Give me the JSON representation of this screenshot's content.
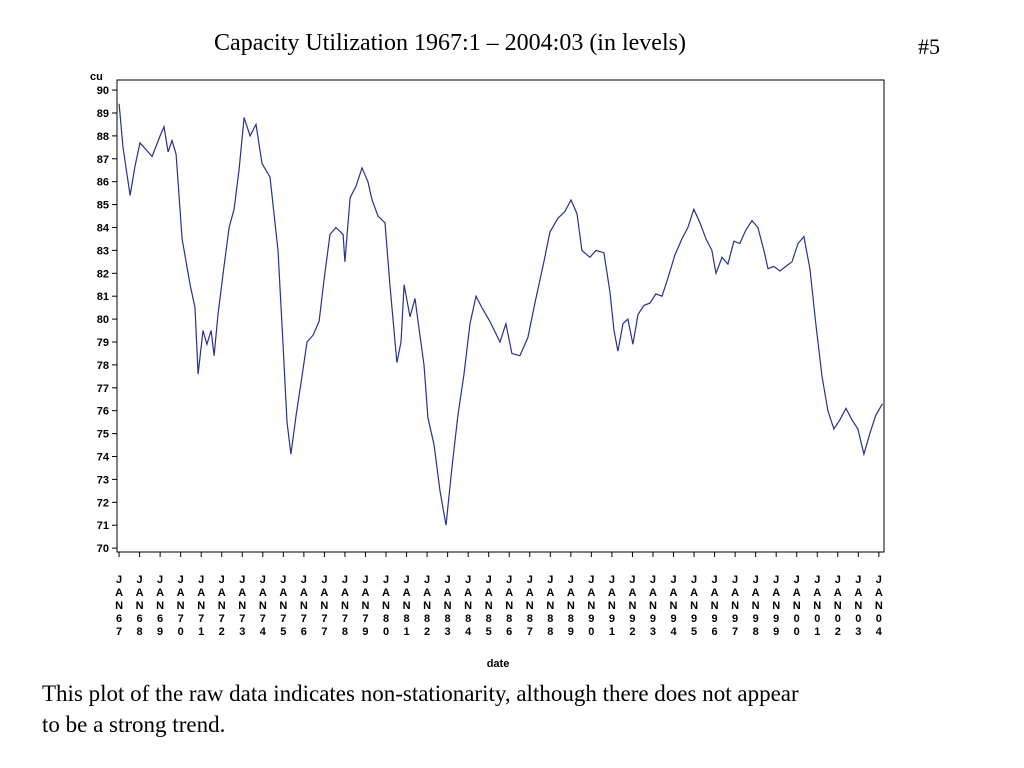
{
  "slide_number": "#5",
  "caption": "This plot of the raw data indicates non-stationarity, although there does not appear to be a strong trend.",
  "chart_data": {
    "type": "line",
    "title": "Capacity Utilization 1967:1 – 2004:03 (in levels)",
    "y_label": "cu",
    "x_label": "date",
    "x": [
      1967.0,
      1967.19,
      1967.54,
      1967.78,
      1968.02,
      1968.41,
      1968.61,
      1969.0,
      1969.19,
      1969.39,
      1969.58,
      1969.78,
      1970.07,
      1970.46,
      1970.7,
      1970.85,
      1971.09,
      1971.28,
      1971.48,
      1971.63,
      1971.82,
      1972.11,
      1972.36,
      1972.6,
      1972.84,
      1973.09,
      1973.38,
      1973.67,
      1973.96,
      1974.35,
      1974.74,
      1974.98,
      1975.18,
      1975.37,
      1975.62,
      1975.91,
      1976.15,
      1976.45,
      1976.74,
      1976.98,
      1977.27,
      1977.56,
      1977.91,
      1978.0,
      1978.25,
      1978.54,
      1978.83,
      1979.12,
      1979.32,
      1979.61,
      1979.95,
      1980.19,
      1980.53,
      1980.73,
      1980.88,
      1981.17,
      1981.41,
      1981.65,
      1981.85,
      1982.04,
      1982.34,
      1982.63,
      1982.92,
      1983.21,
      1983.5,
      1983.8,
      1984.09,
      1984.38,
      1984.67,
      1985.06,
      1985.55,
      1985.84,
      1986.13,
      1986.52,
      1986.91,
      1987.25,
      1987.69,
      1987.98,
      1988.37,
      1988.71,
      1989.01,
      1989.3,
      1989.54,
      1989.93,
      1990.22,
      1990.61,
      1990.9,
      1991.1,
      1991.29,
      1991.54,
      1991.78,
      1992.02,
      1992.27,
      1992.56,
      1992.85,
      1993.14,
      1993.44,
      1993.73,
      1994.07,
      1994.41,
      1994.7,
      1994.99,
      1995.29,
      1995.58,
      1995.87,
      1996.07,
      1996.36,
      1996.65,
      1996.94,
      1997.23,
      1997.53,
      1997.82,
      1998.11,
      1998.4,
      1998.6,
      1998.89,
      1999.18,
      1999.47,
      1999.77,
      2000.06,
      2000.35,
      2000.64,
      2000.93,
      2001.23,
      2001.52,
      2001.81,
      2002.1,
      2002.4,
      2002.69,
      2002.98,
      2003.27,
      2003.56,
      2003.85,
      2004.17
    ],
    "series": [
      {
        "color": "#27318f",
        "values": [
          89.4,
          87.5,
          85.4,
          86.7,
          87.7,
          87.3,
          87.1,
          88.0,
          88.4,
          87.3,
          87.8,
          87.2,
          83.5,
          81.5,
          80.5,
          77.6,
          79.5,
          78.9,
          79.5,
          78.4,
          80.2,
          82.3,
          84.0,
          84.8,
          86.5,
          88.8,
          88.0,
          88.5,
          86.8,
          86.2,
          83.0,
          79.0,
          75.5,
          74.1,
          75.8,
          77.5,
          79.0,
          79.3,
          79.9,
          81.7,
          83.7,
          84.0,
          83.7,
          82.5,
          85.3,
          85.8,
          86.6,
          86.0,
          85.2,
          84.5,
          84.2,
          81.5,
          78.1,
          79.0,
          81.5,
          80.1,
          80.9,
          79.3,
          78.0,
          75.7,
          74.5,
          72.5,
          71.0,
          73.5,
          75.8,
          77.6,
          79.8,
          81.0,
          80.5,
          79.9,
          79.0,
          79.8,
          78.5,
          78.4,
          79.2,
          80.7,
          82.5,
          83.8,
          84.4,
          84.7,
          85.2,
          84.6,
          83.0,
          82.7,
          83.0,
          82.9,
          81.2,
          79.5,
          78.6,
          79.8,
          80.0,
          78.9,
          80.2,
          80.6,
          80.7,
          81.1,
          81.0,
          81.8,
          82.8,
          83.5,
          84.0,
          84.8,
          84.2,
          83.5,
          83.0,
          82.0,
          82.7,
          82.4,
          83.4,
          83.3,
          83.9,
          84.3,
          84.0,
          83.0,
          82.2,
          82.3,
          82.1,
          82.3,
          82.5,
          83.3,
          83.6,
          82.2,
          79.8,
          77.5,
          76.0,
          75.2,
          75.6,
          76.1,
          75.6,
          75.2,
          74.1,
          75.0,
          75.8,
          76.3
        ]
      }
    ],
    "xlim": [
      1966.9,
      2004.25
    ],
    "ylim": [
      69.83,
      90.44
    ],
    "yticks": [
      70,
      71,
      72,
      73,
      74,
      75,
      76,
      77,
      78,
      79,
      80,
      81,
      82,
      83,
      84,
      85,
      86,
      87,
      88,
      89,
      90
    ],
    "xticks": [
      {
        "value": 1967,
        "label": "JAN67"
      },
      {
        "value": 1968,
        "label": "JAN68"
      },
      {
        "value": 1969,
        "label": "JAN69"
      },
      {
        "value": 1970,
        "label": "JAN70"
      },
      {
        "value": 1971,
        "label": "JAN71"
      },
      {
        "value": 1972,
        "label": "JAN72"
      },
      {
        "value": 1973,
        "label": "JAN73"
      },
      {
        "value": 1974,
        "label": "JAN74"
      },
      {
        "value": 1975,
        "label": "JAN75"
      },
      {
        "value": 1976,
        "label": "JAN76"
      },
      {
        "value": 1977,
        "label": "JAN77"
      },
      {
        "value": 1978,
        "label": "JAN78"
      },
      {
        "value": 1979,
        "label": "JAN79"
      },
      {
        "value": 1980,
        "label": "JAN80"
      },
      {
        "value": 1981,
        "label": "JAN81"
      },
      {
        "value": 1982,
        "label": "JAN82"
      },
      {
        "value": 1983,
        "label": "JAN83"
      },
      {
        "value": 1984,
        "label": "JAN84"
      },
      {
        "value": 1985,
        "label": "JAN85"
      },
      {
        "value": 1986,
        "label": "JAN86"
      },
      {
        "value": 1987,
        "label": "JAN87"
      },
      {
        "value": 1988,
        "label": "JAN88"
      },
      {
        "value": 1989,
        "label": "JAN89"
      },
      {
        "value": 1990,
        "label": "JAN90"
      },
      {
        "value": 1991,
        "label": "JAN91"
      },
      {
        "value": 1992,
        "label": "JAN92"
      },
      {
        "value": 1993,
        "label": "JAN93"
      },
      {
        "value": 1994,
        "label": "JAN94"
      },
      {
        "value": 1995,
        "label": "JAN95"
      },
      {
        "value": 1996,
        "label": "JAN96"
      },
      {
        "value": 1997,
        "label": "JAN97"
      },
      {
        "value": 1998,
        "label": "JAN98"
      },
      {
        "value": 1999,
        "label": "JAN99"
      },
      {
        "value": 2000,
        "label": "JAN00"
      },
      {
        "value": 2001,
        "label": "JAN01"
      },
      {
        "value": 2002,
        "label": "JAN02"
      },
      {
        "value": 2003,
        "label": "JAN03"
      },
      {
        "value": 2004,
        "label": "JAN04"
      }
    ]
  }
}
